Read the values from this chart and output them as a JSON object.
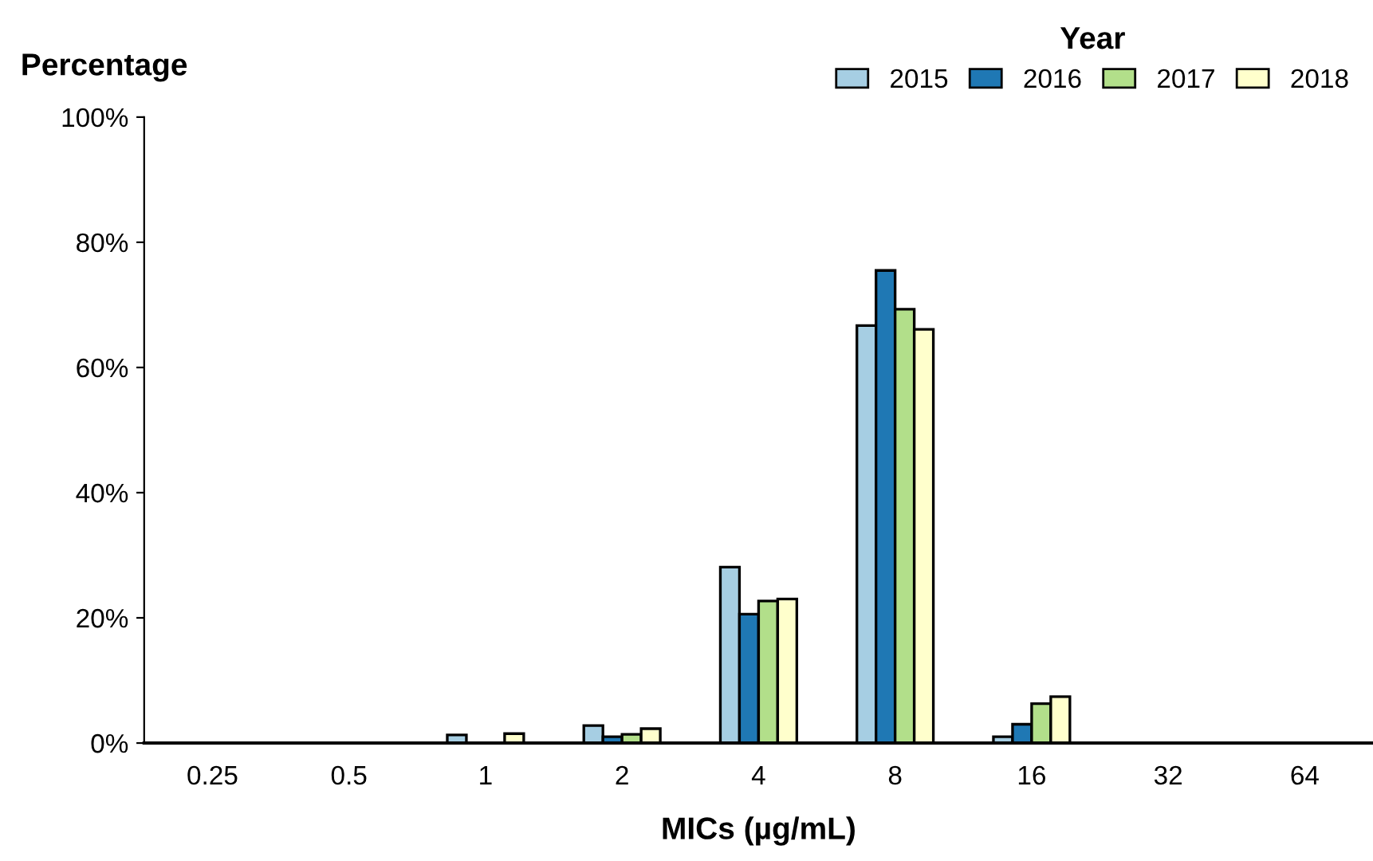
{
  "chart_data": {
    "type": "bar",
    "xlabel": "MICs (µg/mL)",
    "ylabel": "Percentage",
    "legend_title": "Year",
    "legend": "top right",
    "categories": [
      "0.25",
      "0.5",
      "1",
      "2",
      "4",
      "8",
      "16",
      "32",
      "64"
    ],
    "series": [
      {
        "name": "2015",
        "color": "#a6cee3",
        "values": [
          null,
          null,
          1.3,
          2.8,
          28.1,
          66.7,
          1.0,
          null,
          null
        ]
      },
      {
        "name": "2016",
        "color": "#1f78b4",
        "values": [
          null,
          null,
          null,
          1.0,
          20.6,
          75.5,
          3.0,
          null,
          null
        ]
      },
      {
        "name": "2017",
        "color": "#b2df8a",
        "values": [
          null,
          null,
          null,
          1.4,
          22.7,
          69.3,
          6.3,
          null,
          null
        ]
      },
      {
        "name": "2018",
        "color": "#ffffcc",
        "values": [
          null,
          null,
          1.5,
          2.3,
          23.0,
          66.1,
          7.4,
          null,
          null
        ]
      }
    ],
    "ylim": [
      0,
      100
    ],
    "yticks": [
      {
        "value": 0,
        "label": "0%"
      },
      {
        "value": 20,
        "label": "20%"
      },
      {
        "value": 40,
        "label": "40%"
      },
      {
        "value": 60,
        "label": "60%"
      },
      {
        "value": 80,
        "label": "80%"
      },
      {
        "value": 100,
        "label": "100%"
      }
    ],
    "grid": false
  }
}
